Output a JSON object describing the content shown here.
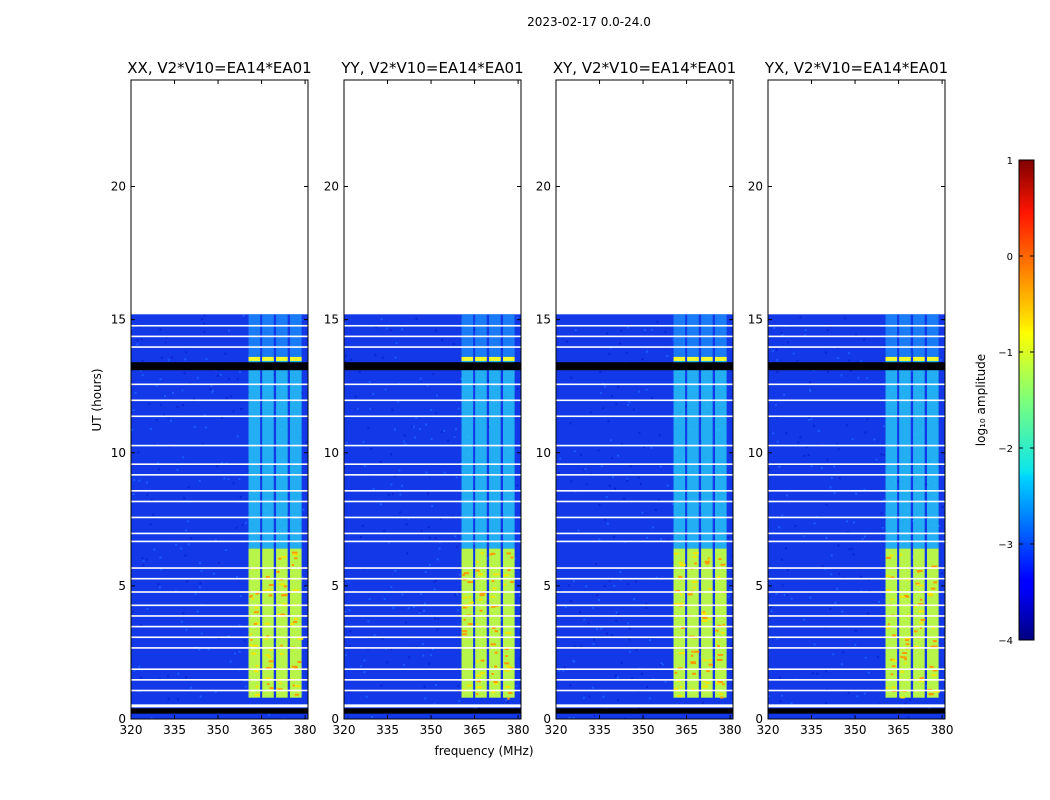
{
  "chart_data": {
    "type": "heatmap",
    "suptitle": "2023-02-17 0.0-24.0",
    "xlabel": "frequency (MHz)",
    "ylabel": "UT (hours)",
    "xlim": [
      320,
      381
    ],
    "ylim": [
      0,
      24
    ],
    "x_ticks": [
      320,
      335,
      350,
      365,
      380
    ],
    "y_ticks": [
      0,
      5,
      10,
      15,
      20
    ],
    "panels": [
      {
        "title": "XX, V2*V10=EA14*EA01",
        "polarization": "XX"
      },
      {
        "title": "YY, V2*V10=EA14*EA01",
        "polarization": "YY"
      },
      {
        "title": "XY, V2*V10=EA14*EA01",
        "polarization": "XY"
      },
      {
        "title": "YX, V2*V10=EA14*EA01",
        "polarization": "YX"
      }
    ],
    "data_extent_hours": [
      0,
      15.2
    ],
    "signal_band_mhz": [
      360.5,
      379.5
    ],
    "signal_subbands_mhz": [
      [
        360.5,
        364.5
      ],
      [
        365.2,
        369.2
      ],
      [
        370.0,
        374.0
      ],
      [
        374.8,
        378.8
      ]
    ],
    "flagged_gaps_hours": [
      [
        0.2,
        0.4
      ],
      [
        13.1,
        13.4
      ]
    ],
    "colorbar": {
      "label": "log₁₀ amplitude",
      "min": -4,
      "max": 1,
      "ticks": [
        "1",
        "0",
        "−1",
        "−2",
        "−3",
        "−4"
      ],
      "colormap": "jet"
    }
  }
}
